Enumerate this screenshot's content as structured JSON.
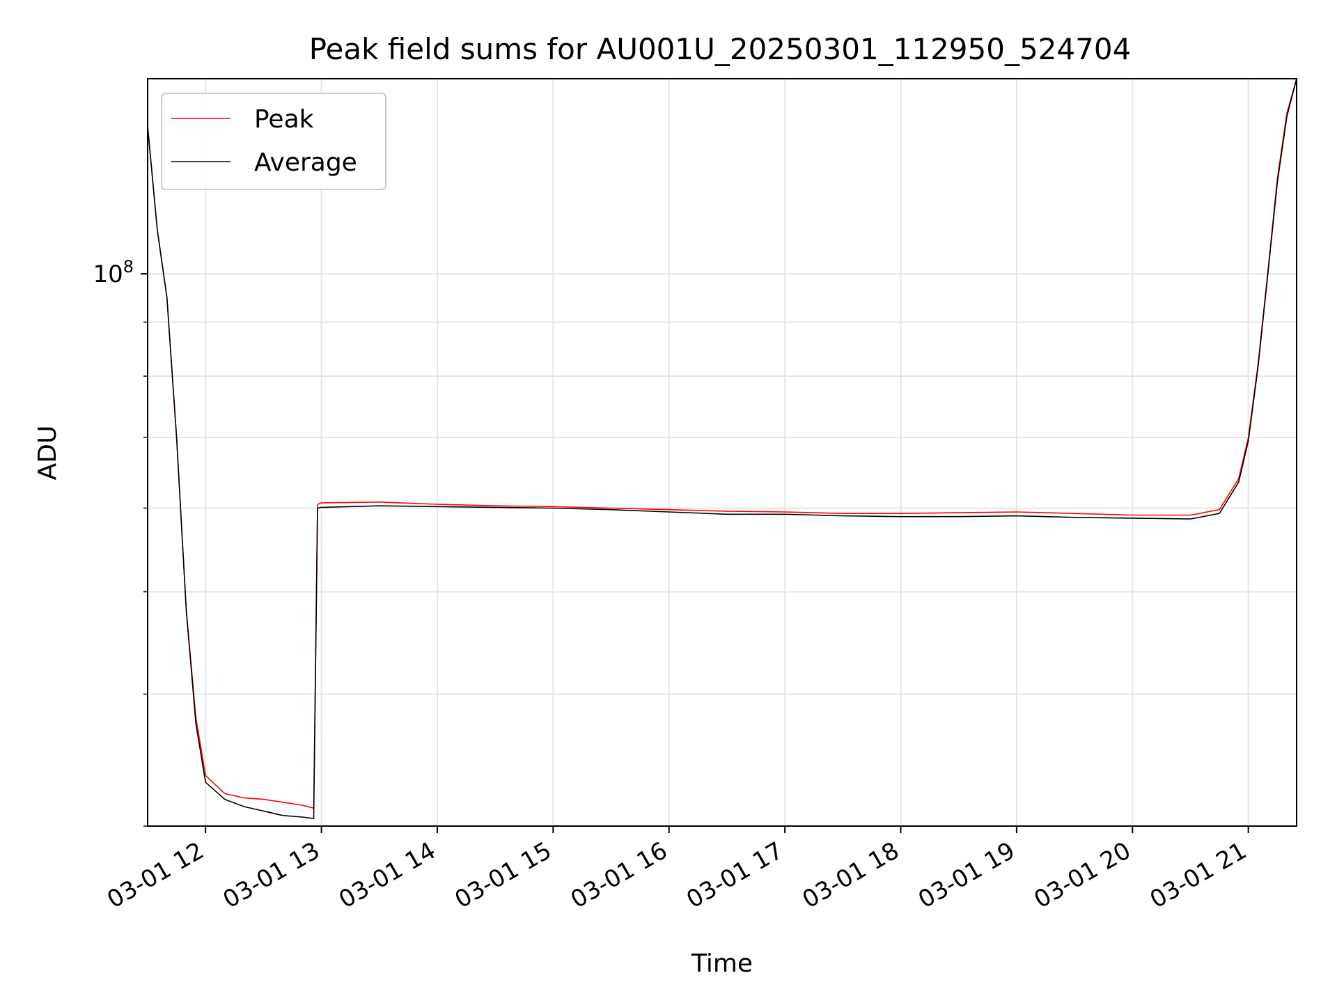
{
  "chart_data": {
    "type": "line",
    "title": "Peak field sums for AU001U_20250301_112950_524704",
    "xlabel": "Time",
    "ylabel": "ADU",
    "x_axis": {
      "kind": "datetime",
      "range": [
        "2025-03-01 11:30",
        "2025-03-01 21:25"
      ],
      "tick_values": [
        "2025-03-01 12:00",
        "2025-03-01 13:00",
        "2025-03-01 14:00",
        "2025-03-01 15:00",
        "2025-03-01 16:00",
        "2025-03-01 17:00",
        "2025-03-01 18:00",
        "2025-03-01 19:00",
        "2025-03-01 20:00",
        "2025-03-01 21:00"
      ],
      "tick_labels": [
        "03-01 12",
        "03-01 13",
        "03-01 14",
        "03-01 15",
        "03-01 16",
        "03-01 17",
        "03-01 18",
        "03-01 19",
        "03-01 20",
        "03-01 21"
      ]
    },
    "y_axis": {
      "scale": "log",
      "range": [
        30000000,
        153000000
      ],
      "major_ticks": [
        {
          "value": 100000000,
          "base": "10",
          "exp": "8"
        }
      ],
      "minor_ticks": [
        30000000,
        40000000,
        50000000,
        60000000,
        70000000,
        80000000,
        90000000
      ]
    },
    "grid": true,
    "legend": {
      "placement": "top-left",
      "entries": [
        "Peak",
        "Average"
      ]
    },
    "series": [
      {
        "name": "Peak",
        "color": "#ff0000",
        "points": [
          [
            "2025-03-01 11:30",
            138000000
          ],
          [
            "2025-03-01 11:35",
            110000000
          ],
          [
            "2025-03-01 11:40",
            95000000
          ],
          [
            "2025-03-01 11:45",
            70000000
          ],
          [
            "2025-03-01 11:50",
            48000000
          ],
          [
            "2025-03-01 11:55",
            38000000
          ],
          [
            "2025-03-01 12:00",
            33500000
          ],
          [
            "2025-03-01 12:10",
            32200000
          ],
          [
            "2025-03-01 12:20",
            31900000
          ],
          [
            "2025-03-01 12:30",
            31800000
          ],
          [
            "2025-03-01 12:40",
            31600000
          ],
          [
            "2025-03-01 12:50",
            31400000
          ],
          [
            "2025-03-01 12:56",
            31200000
          ],
          [
            "2025-03-01 12:58",
            60500000
          ],
          [
            "2025-03-01 13:00",
            60700000
          ],
          [
            "2025-03-01 13:30",
            60800000
          ],
          [
            "2025-03-01 14:00",
            60500000
          ],
          [
            "2025-03-01 14:30",
            60300000
          ],
          [
            "2025-03-01 15:00",
            60200000
          ],
          [
            "2025-03-01 15:30",
            60000000
          ],
          [
            "2025-03-01 16:00",
            59800000
          ],
          [
            "2025-03-01 16:30",
            59600000
          ],
          [
            "2025-03-01 17:00",
            59500000
          ],
          [
            "2025-03-01 17:30",
            59300000
          ],
          [
            "2025-03-01 18:00",
            59300000
          ],
          [
            "2025-03-01 18:30",
            59400000
          ],
          [
            "2025-03-01 19:00",
            59500000
          ],
          [
            "2025-03-01 19:30",
            59300000
          ],
          [
            "2025-03-01 20:00",
            59100000
          ],
          [
            "2025-03-01 20:30",
            59100000
          ],
          [
            "2025-03-01 20:45",
            59800000
          ],
          [
            "2025-03-01 20:55",
            64000000
          ],
          [
            "2025-03-01 21:00",
            70000000
          ],
          [
            "2025-03-01 21:05",
            82000000
          ],
          [
            "2025-03-01 21:10",
            100000000
          ],
          [
            "2025-03-01 21:15",
            123000000
          ],
          [
            "2025-03-01 21:20",
            142000000
          ],
          [
            "2025-03-01 21:25",
            153000000
          ]
        ]
      },
      {
        "name": "Average",
        "color": "#000000",
        "points": [
          [
            "2025-03-01 11:30",
            138000000
          ],
          [
            "2025-03-01 11:35",
            110000000
          ],
          [
            "2025-03-01 11:40",
            95000000
          ],
          [
            "2025-03-01 11:45",
            70000000
          ],
          [
            "2025-03-01 11:50",
            48000000
          ],
          [
            "2025-03-01 11:55",
            37500000
          ],
          [
            "2025-03-01 12:00",
            33000000
          ],
          [
            "2025-03-01 12:10",
            31800000
          ],
          [
            "2025-03-01 12:20",
            31300000
          ],
          [
            "2025-03-01 12:30",
            31000000
          ],
          [
            "2025-03-01 12:40",
            30700000
          ],
          [
            "2025-03-01 12:50",
            30600000
          ],
          [
            "2025-03-01 12:56",
            30500000
          ],
          [
            "2025-03-01 12:58",
            60000000
          ],
          [
            "2025-03-01 13:00",
            60100000
          ],
          [
            "2025-03-01 13:30",
            60300000
          ],
          [
            "2025-03-01 14:00",
            60200000
          ],
          [
            "2025-03-01 14:30",
            60100000
          ],
          [
            "2025-03-01 15:00",
            60000000
          ],
          [
            "2025-03-01 15:30",
            59800000
          ],
          [
            "2025-03-01 16:00",
            59500000
          ],
          [
            "2025-03-01 16:30",
            59200000
          ],
          [
            "2025-03-01 17:00",
            59200000
          ],
          [
            "2025-03-01 17:30",
            59000000
          ],
          [
            "2025-03-01 18:00",
            58900000
          ],
          [
            "2025-03-01 18:30",
            58900000
          ],
          [
            "2025-03-01 19:00",
            59000000
          ],
          [
            "2025-03-01 19:30",
            58800000
          ],
          [
            "2025-03-01 20:00",
            58700000
          ],
          [
            "2025-03-01 20:30",
            58600000
          ],
          [
            "2025-03-01 20:45",
            59300000
          ],
          [
            "2025-03-01 20:55",
            63500000
          ],
          [
            "2025-03-01 21:00",
            69500000
          ],
          [
            "2025-03-01 21:05",
            81500000
          ],
          [
            "2025-03-01 21:10",
            99500000
          ],
          [
            "2025-03-01 21:15",
            122000000
          ],
          [
            "2025-03-01 21:20",
            141000000
          ],
          [
            "2025-03-01 21:25",
            153000000
          ]
        ]
      }
    ]
  }
}
